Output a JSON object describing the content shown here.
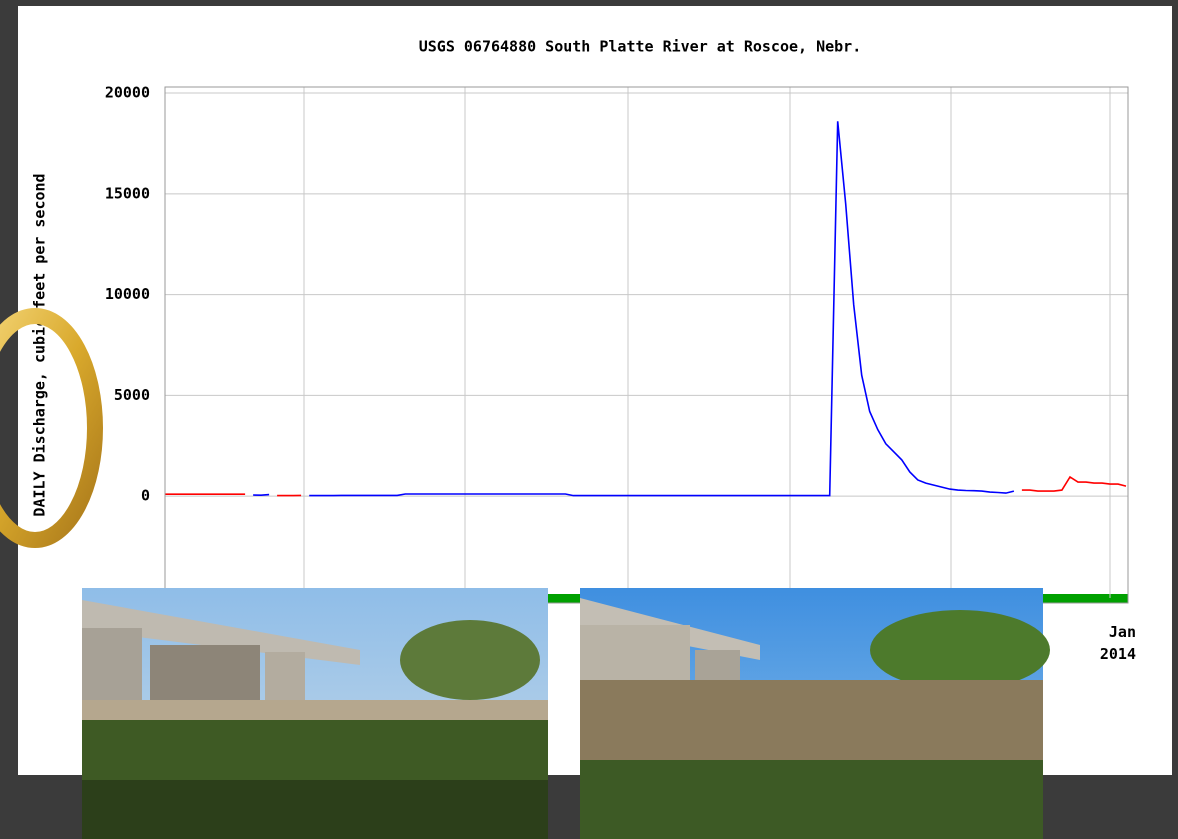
{
  "chart_data": {
    "type": "line",
    "title": "USGS 06764880 South Platte River at Roscoe, Nebr.",
    "y_label": "DAILY Discharge, cubic feet per second",
    "categories": [
      null,
      null,
      null,
      null,
      null,
      null,
      null,
      null,
      null,
      null,
      null,
      null,
      null,
      null,
      null,
      null,
      null,
      null,
      null,
      null,
      null,
      null,
      null,
      null,
      null,
      null,
      null,
      null,
      null,
      null,
      null,
      null,
      null,
      null,
      null,
      null,
      null,
      null,
      null,
      null,
      null,
      null,
      null,
      null,
      null,
      null,
      null,
      null,
      null,
      null,
      null,
      null,
      null,
      null,
      null,
      null,
      null,
      null,
      null,
      null,
      null,
      null,
      null,
      null,
      null,
      null,
      null,
      null,
      null,
      null,
      null,
      null,
      null,
      null,
      null,
      null,
      null,
      null,
      null,
      null,
      null,
      null,
      null,
      null,
      null,
      null,
      null,
      null,
      null,
      null,
      null,
      null,
      null,
      null,
      null,
      null,
      null,
      null,
      null,
      null,
      null,
      null,
      null,
      null,
      null,
      null,
      null,
      null,
      null,
      null,
      null,
      null,
      null,
      null,
      null,
      null,
      null,
      null,
      "Jan\n2014",
      null,
      null
    ],
    "series": [
      {
        "color": "#0000ff",
        "values": [
          null,
          null,
          null,
          null,
          null,
          null,
          null,
          null,
          null,
          null,
          null,
          60,
          50,
          80,
          null,
          null,
          null,
          null,
          30,
          30,
          30,
          30,
          40,
          40,
          40,
          40,
          40,
          40,
          40,
          40,
          110,
          110,
          110,
          110,
          110,
          110,
          110,
          110,
          110,
          110,
          110,
          110,
          110,
          110,
          110,
          110,
          110,
          110,
          110,
          110,
          110,
          30,
          30,
          30,
          30,
          30,
          30,
          30,
          30,
          30,
          30,
          30,
          30,
          30,
          30,
          30,
          30,
          30,
          30,
          30,
          30,
          30,
          30,
          30,
          30,
          30,
          30,
          30,
          30,
          30,
          30,
          30,
          30,
          30,
          18600,
          14500,
          9500,
          6000,
          4200,
          3300,
          2600,
          2200,
          1800,
          1200,
          800,
          650,
          550,
          450,
          350,
          300,
          280,
          270,
          250,
          200,
          180,
          150,
          250,
          null,
          null,
          null,
          null,
          null,
          null,
          null,
          null,
          null,
          null,
          null,
          null,
          null,
          null
        ]
      },
      {
        "color": "#ff0000",
        "values": [
          100,
          100,
          100,
          100,
          100,
          100,
          100,
          100,
          100,
          100,
          100,
          null,
          null,
          null,
          30,
          30,
          30,
          40,
          null,
          null,
          null,
          null,
          null,
          null,
          null,
          null,
          null,
          null,
          null,
          null,
          null,
          null,
          null,
          null,
          null,
          null,
          null,
          null,
          null,
          null,
          null,
          null,
          null,
          null,
          null,
          null,
          null,
          null,
          null,
          null,
          null,
          null,
          null,
          null,
          null,
          null,
          null,
          null,
          null,
          null,
          null,
          null,
          null,
          null,
          null,
          null,
          null,
          null,
          null,
          null,
          null,
          null,
          null,
          null,
          null,
          null,
          null,
          null,
          null,
          null,
          null,
          null,
          null,
          null,
          null,
          null,
          null,
          null,
          null,
          null,
          null,
          null,
          null,
          null,
          null,
          null,
          null,
          null,
          null,
          null,
          null,
          null,
          null,
          null,
          null,
          null,
          null,
          300,
          300,
          250,
          250,
          250,
          300,
          950,
          700,
          700,
          650,
          650,
          600,
          600,
          500
        ]
      }
    ],
    "ylim": [
      -5300,
      20300
    ],
    "yticks": [
      0,
      5000,
      10000,
      15000,
      20000
    ],
    "grid": true
  }
}
